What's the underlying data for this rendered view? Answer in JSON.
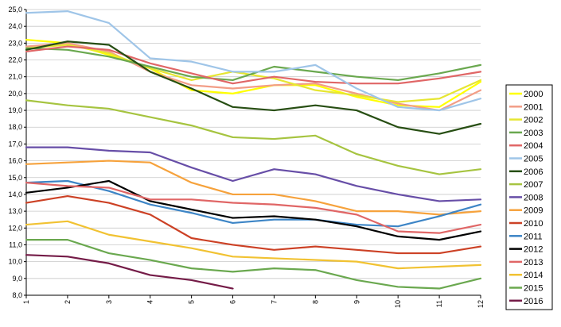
{
  "chart_data": {
    "type": "line",
    "title": "",
    "xlabel": "",
    "ylabel": "",
    "x": [
      1,
      2,
      3,
      4,
      5,
      6,
      7,
      8,
      9,
      10,
      11,
      12
    ],
    "ylim": [
      8.0,
      25.0
    ],
    "y_ticks": [
      "8,0",
      "9,0",
      "10,0",
      "11,0",
      "12,0",
      "13,0",
      "14,0",
      "15,0",
      "16,0",
      "17,0",
      "18,0",
      "19,0",
      "20,0",
      "21,0",
      "22,0",
      "23,0",
      "24,0",
      "25,0"
    ],
    "x_ticks": [
      "1",
      "2",
      "3",
      "4",
      "5",
      "6",
      "7",
      "8",
      "9",
      "10",
      "11",
      "12"
    ],
    "grid": "horizontal",
    "legend_position": "right",
    "series": [
      {
        "name": "2000",
        "color": "#ffff00",
        "values": [
          23.2,
          23.0,
          22.3,
          21.5,
          20.2,
          20.0,
          20.5,
          20.5,
          19.8,
          19.3,
          19.2,
          20.7
        ]
      },
      {
        "name": "2001",
        "color": "#f29d86",
        "values": [
          22.8,
          23.0,
          22.5,
          21.3,
          20.5,
          20.3,
          20.5,
          20.6,
          20.0,
          19.4,
          19.0,
          20.2
        ]
      },
      {
        "name": "2002",
        "color": "#e6e632",
        "values": [
          22.7,
          22.9,
          22.4,
          21.5,
          20.8,
          21.3,
          20.9,
          20.2,
          19.9,
          19.5,
          19.7,
          20.8
        ]
      },
      {
        "name": "2003",
        "color": "#6aa84f",
        "values": [
          22.7,
          22.6,
          22.2,
          21.6,
          21.0,
          20.8,
          21.6,
          21.3,
          21.0,
          20.8,
          21.2,
          21.7
        ]
      },
      {
        "name": "2004",
        "color": "#e06666",
        "values": [
          22.5,
          22.8,
          22.6,
          21.8,
          21.2,
          20.6,
          21.0,
          20.7,
          20.6,
          20.6,
          20.9,
          21.3
        ]
      },
      {
        "name": "2005",
        "color": "#9fc5e8",
        "values": [
          24.8,
          24.9,
          24.2,
          22.1,
          21.9,
          21.3,
          21.3,
          21.7,
          20.3,
          19.2,
          19.0,
          19.7
        ]
      },
      {
        "name": "2006",
        "color": "#274e13",
        "values": [
          22.6,
          23.1,
          22.9,
          21.3,
          20.3,
          19.2,
          19.0,
          19.3,
          19.0,
          18.0,
          17.6,
          18.2
        ]
      },
      {
        "name": "2007",
        "color": "#a6c440",
        "values": [
          19.6,
          19.3,
          19.1,
          18.6,
          18.1,
          17.4,
          17.3,
          17.5,
          16.4,
          15.7,
          15.2,
          15.5
        ]
      },
      {
        "name": "2008",
        "color": "#674ea7",
        "values": [
          16.8,
          16.8,
          16.6,
          16.5,
          15.6,
          14.8,
          15.5,
          15.2,
          14.5,
          14.0,
          13.6,
          13.7
        ]
      },
      {
        "name": "2009",
        "color": "#f6a23c",
        "values": [
          15.8,
          15.9,
          16.0,
          15.9,
          14.7,
          14.0,
          14.0,
          13.6,
          13.0,
          13.0,
          12.8,
          13.0
        ]
      },
      {
        "name": "2010",
        "color": "#cc4125",
        "values": [
          13.5,
          13.9,
          13.5,
          12.8,
          11.4,
          11.0,
          10.7,
          10.9,
          10.7,
          10.5,
          10.5,
          10.9
        ]
      },
      {
        "name": "2011",
        "color": "#3d85c6",
        "values": [
          14.7,
          14.8,
          14.2,
          13.4,
          12.9,
          12.3,
          12.5,
          12.5,
          12.2,
          12.1,
          12.7,
          13.4
        ]
      },
      {
        "name": "2012",
        "color": "#000000",
        "values": [
          14.1,
          14.4,
          14.8,
          13.6,
          13.1,
          12.6,
          12.7,
          12.5,
          12.1,
          11.5,
          11.3,
          11.8
        ]
      },
      {
        "name": "2013",
        "color": "#e06666",
        "values": [
          14.7,
          14.5,
          14.4,
          13.7,
          13.7,
          13.5,
          13.4,
          13.2,
          12.8,
          11.8,
          11.7,
          12.2
        ]
      },
      {
        "name": "2014",
        "color": "#f1c232",
        "values": [
          12.2,
          12.4,
          11.6,
          11.2,
          10.8,
          10.3,
          10.2,
          10.1,
          10.0,
          9.6,
          9.7,
          9.8
        ]
      },
      {
        "name": "2015",
        "color": "#6aa84f",
        "values": [
          11.3,
          11.3,
          10.5,
          10.1,
          9.6,
          9.4,
          9.6,
          9.5,
          8.9,
          8.5,
          8.4,
          9.0
        ]
      },
      {
        "name": "2016",
        "color": "#741b47",
        "values": [
          10.4,
          10.3,
          9.9,
          9.2,
          8.9,
          8.4,
          null,
          null,
          null,
          null,
          null,
          null
        ]
      }
    ]
  }
}
